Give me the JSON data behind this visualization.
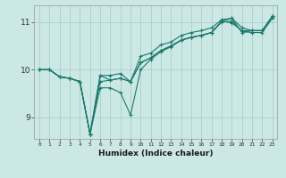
{
  "xlabel": "Humidex (Indice chaleur)",
  "ylabel": "",
  "background_color": "#cce8e4",
  "grid_color": "#aad0cc",
  "line_color": "#1a7a6e",
  "xlim": [
    -0.5,
    23.5
  ],
  "ylim": [
    8.55,
    11.35
  ],
  "xticks": [
    0,
    1,
    2,
    3,
    4,
    5,
    6,
    7,
    8,
    9,
    10,
    11,
    12,
    13,
    14,
    15,
    16,
    17,
    18,
    19,
    20,
    21,
    22,
    23
  ],
  "yticks": [
    9,
    10,
    11
  ],
  "series": [
    [
      10.0,
      10.0,
      9.85,
      9.82,
      9.75,
      8.65,
      9.75,
      9.78,
      9.82,
      9.75,
      10.15,
      10.25,
      10.4,
      10.5,
      10.62,
      10.68,
      10.72,
      10.78,
      11.0,
      11.02,
      10.8,
      10.78,
      10.78,
      11.08
    ],
    [
      10.0,
      10.0,
      9.85,
      9.82,
      9.75,
      8.65,
      9.88,
      9.88,
      9.92,
      9.75,
      10.28,
      10.35,
      10.52,
      10.58,
      10.72,
      10.78,
      10.82,
      10.88,
      11.05,
      11.08,
      10.88,
      10.82,
      10.82,
      11.12
    ],
    [
      10.0,
      10.0,
      9.85,
      9.82,
      9.75,
      8.65,
      9.88,
      9.78,
      9.82,
      9.75,
      10.15,
      10.25,
      10.4,
      10.5,
      10.62,
      10.68,
      10.72,
      10.78,
      11.02,
      11.08,
      10.78,
      10.82,
      10.82,
      11.12
    ],
    [
      10.0,
      10.0,
      9.85,
      9.82,
      9.75,
      8.65,
      9.62,
      9.62,
      9.52,
      9.05,
      10.0,
      10.22,
      10.38,
      10.48,
      10.62,
      10.68,
      10.72,
      10.78,
      11.02,
      10.98,
      10.82,
      10.82,
      10.82,
      11.12
    ]
  ]
}
